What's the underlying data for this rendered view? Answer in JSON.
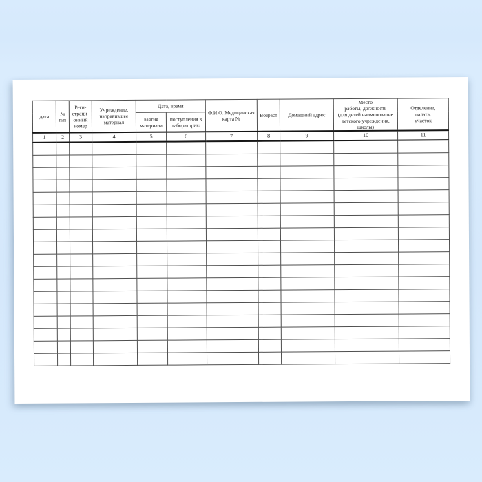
{
  "background": {
    "color_top": "#d8ebfd",
    "color_bottom": "#d9ecfd"
  },
  "page": {
    "color": "#ffffff"
  },
  "table": {
    "grid_color": "#4f4f4f",
    "heavy_line_color": "#161616",
    "group_header": {
      "label": "Дата, время"
    },
    "columns": [
      {
        "num": "1",
        "label": "дата"
      },
      {
        "num": "2",
        "label": "№\nп/п"
      },
      {
        "num": "3",
        "label": "Реги-\nстраци-\nонный\nномер"
      },
      {
        "num": "4",
        "label": "Учреждение,\nнаправившее\nматериал"
      },
      {
        "num": "5",
        "label": "взятия\nматериала"
      },
      {
        "num": "6",
        "label": "поступления в\nлабораторию"
      },
      {
        "num": "7",
        "label": "Ф.И.О. Медицинская\nкарта №"
      },
      {
        "num": "8",
        "label": "Возраст"
      },
      {
        "num": "9",
        "label": "Домашний адрес"
      },
      {
        "num": "10",
        "label": "Место\nработы,  должность\n(для детей наименование\nдетского учреждения,\nшколы)"
      },
      {
        "num": "11",
        "label": "Отделение,\nпалата,\nучасток"
      }
    ],
    "empty_row_count": 18
  }
}
